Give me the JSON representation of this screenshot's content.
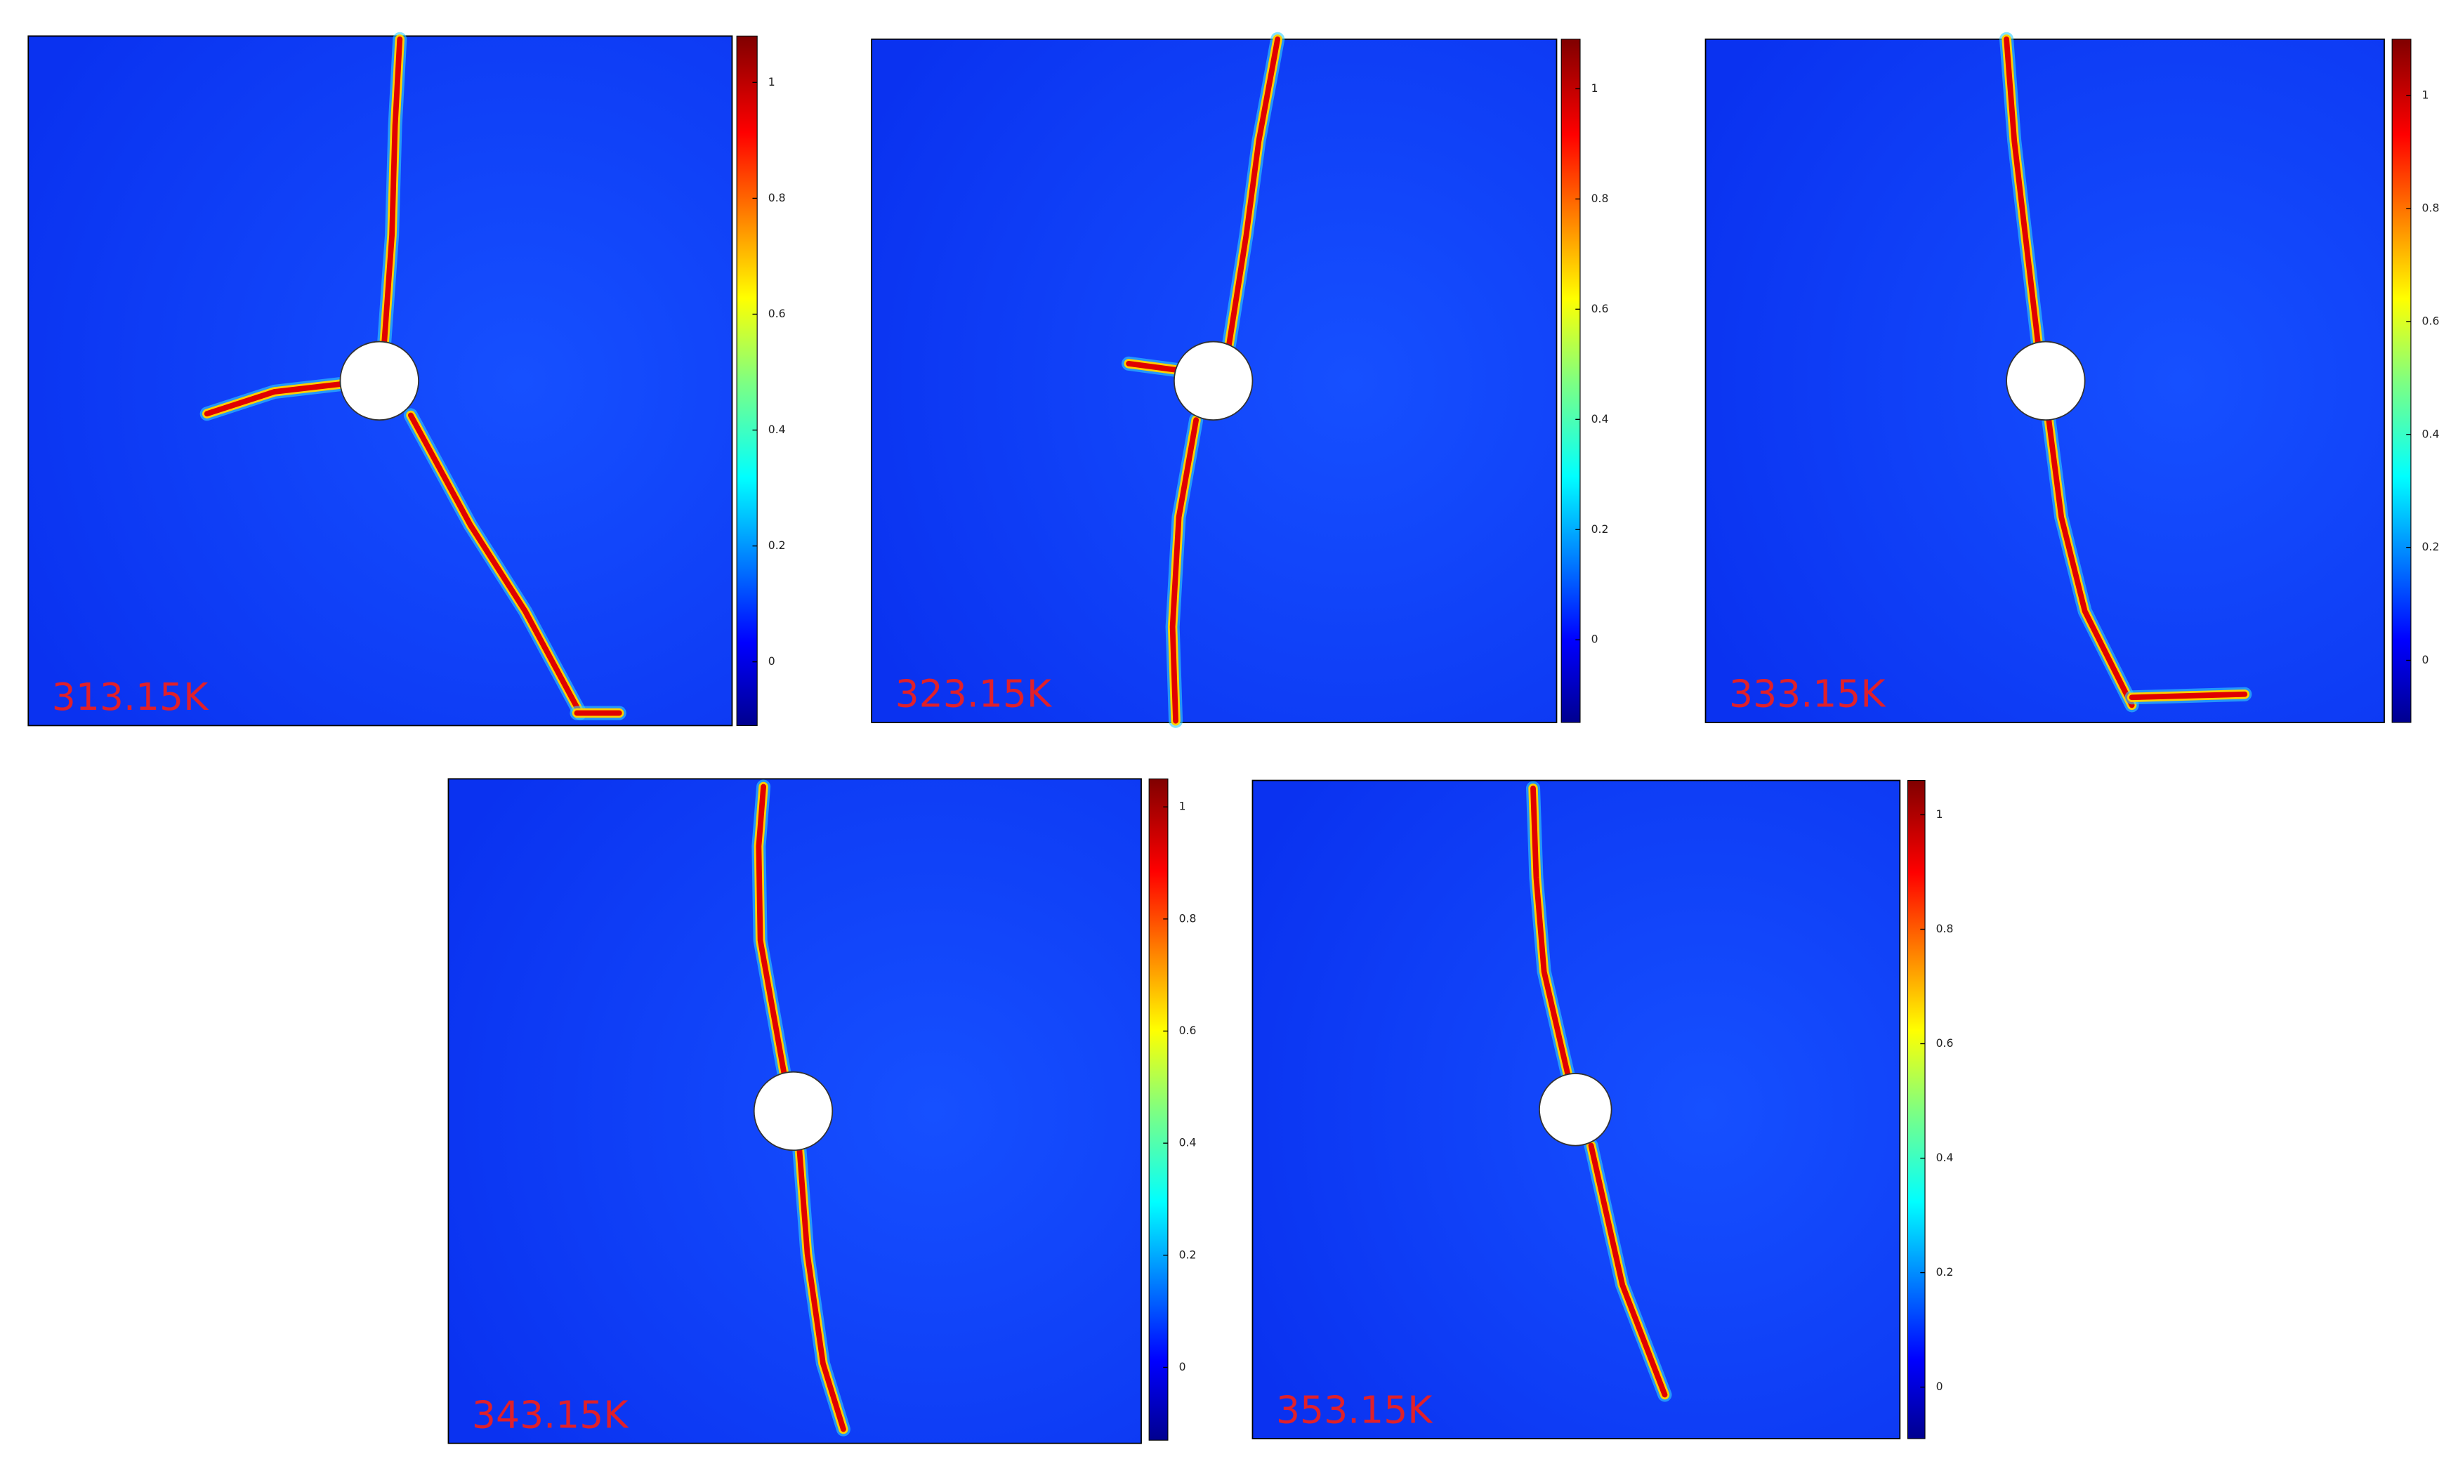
{
  "panels": [
    {
      "label": "313.15K",
      "colorbar": {
        "clim": [
          -0.11,
          1.08
        ],
        "ticks": [
          0,
          0.2,
          0.4,
          0.6,
          0.8,
          1
        ]
      }
    },
    {
      "label": "323.15K",
      "colorbar": {
        "clim": [
          -0.15,
          1.09
        ],
        "ticks": [
          0,
          0.2,
          0.4,
          0.6,
          0.8,
          1
        ]
      }
    },
    {
      "label": "333.15K",
      "colorbar": {
        "clim": [
          -0.11,
          1.1
        ],
        "ticks": [
          0,
          0.2,
          0.4,
          0.6,
          0.8,
          1
        ]
      }
    },
    {
      "label": "343.15K",
      "colorbar": {
        "clim": [
          -0.13,
          1.05
        ],
        "ticks": [
          0,
          0.2,
          0.4,
          0.6,
          0.8,
          1
        ]
      }
    },
    {
      "label": "353.15K",
      "colorbar": {
        "clim": [
          -0.09,
          1.06
        ],
        "ticks": [
          0,
          0.2,
          0.4,
          0.6,
          0.8,
          1
        ]
      }
    }
  ]
}
